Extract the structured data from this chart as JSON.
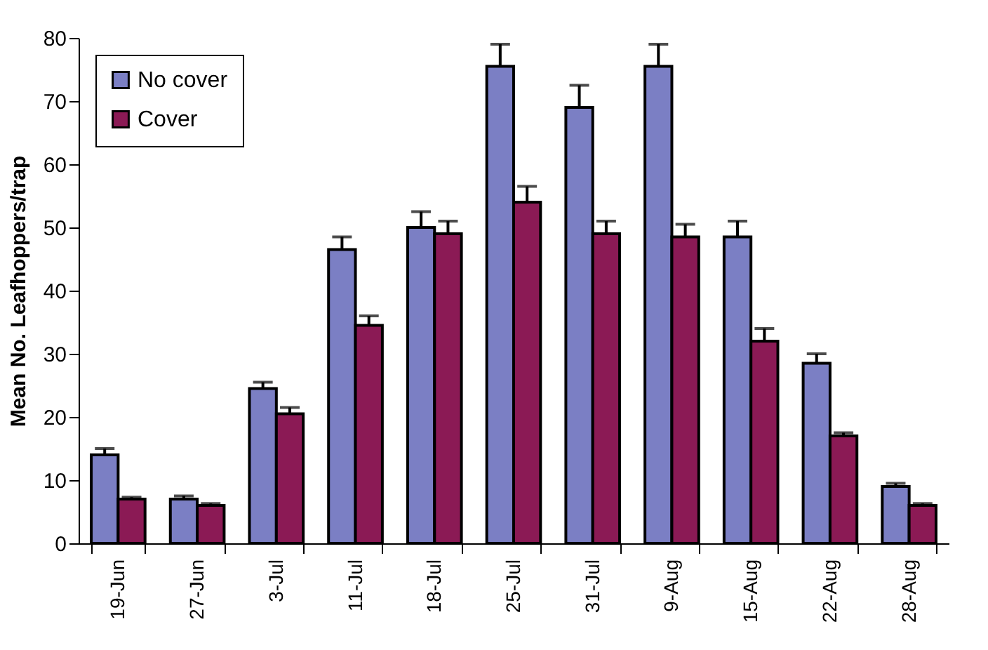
{
  "chart_data": {
    "type": "bar",
    "ylabel": "Mean No. Leafhoppers/trap",
    "categories": [
      "19-Jun",
      "27-Jun",
      "3-Jul",
      "11-Jul",
      "18-Jul",
      "25-Jul",
      "31-Jul",
      "9-Aug",
      "15-Aug",
      "22-Aug",
      "28-Aug"
    ],
    "series": [
      {
        "name": "No cover",
        "color": "#7b7fc4",
        "values": [
          14,
          7,
          24.5,
          46.5,
          50,
          75.5,
          69,
          75.5,
          48.5,
          28.5,
          9
        ],
        "errors": [
          [
            14,
            15
          ],
          [
            7,
            7.5
          ],
          [
            24.5,
            25.5
          ],
          [
            46.5,
            48.5
          ],
          [
            50,
            52.5
          ],
          [
            75.5,
            79
          ],
          [
            69,
            72.5
          ],
          [
            75.5,
            79
          ],
          [
            48.5,
            51
          ],
          [
            28.5,
            30
          ],
          [
            9,
            9.5
          ]
        ]
      },
      {
        "name": "Cover",
        "color": "#8b1a55",
        "values": [
          7,
          6,
          20.5,
          34.5,
          49,
          54,
          49,
          48.5,
          32,
          17,
          6
        ],
        "errors": [
          [
            7,
            7.3
          ],
          [
            6,
            6.3
          ],
          [
            20.5,
            21.5
          ],
          [
            34.5,
            36
          ],
          [
            49,
            51
          ],
          [
            54,
            56.5
          ],
          [
            49,
            51
          ],
          [
            48.5,
            50.5
          ],
          [
            32,
            34
          ],
          [
            17,
            17.5
          ],
          [
            6,
            6.3
          ]
        ]
      }
    ],
    "ylim": [
      0,
      80
    ],
    "yticks": [
      0,
      10,
      20,
      30,
      40,
      50,
      60,
      70,
      80
    ],
    "grid": false,
    "legend": "top left"
  }
}
